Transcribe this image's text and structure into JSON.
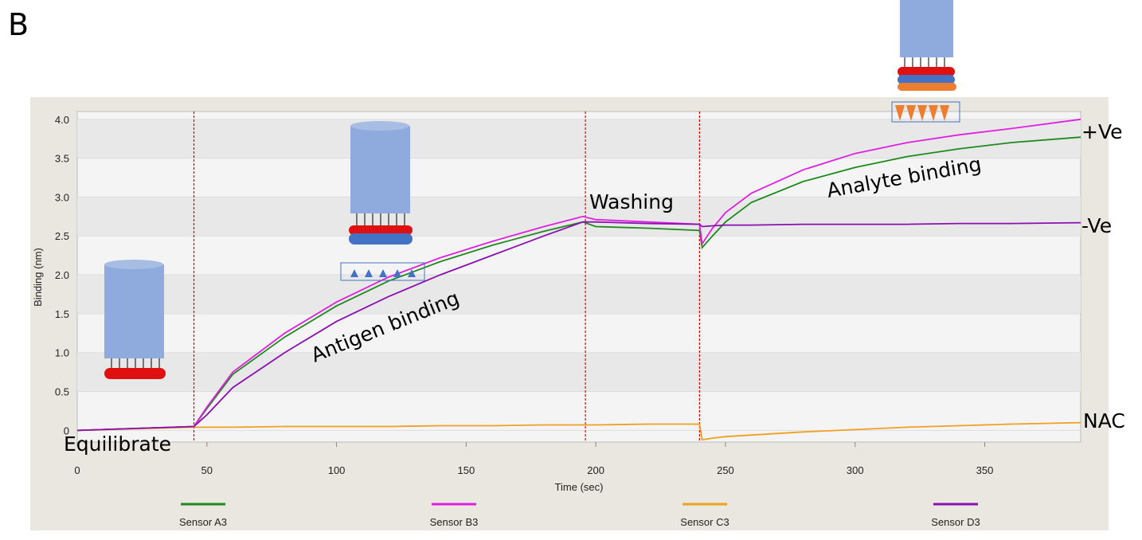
{
  "panel_label": "B",
  "chart_data": {
    "type": "line",
    "xlabel": "Time (sec)",
    "ylabel": "Binding (nm)",
    "x": [
      0,
      45,
      50,
      60,
      80,
      100,
      120,
      140,
      160,
      180,
      195,
      200,
      220,
      240,
      241,
      245,
      250,
      260,
      280,
      300,
      320,
      340,
      360,
      387
    ],
    "series": [
      {
        "name": "Sensor A3",
        "color": "#1e8a1e",
        "values": [
          0,
          0.05,
          0.28,
          0.72,
          1.2,
          1.6,
          1.92,
          2.17,
          2.38,
          2.56,
          2.68,
          2.62,
          2.6,
          2.57,
          2.35,
          2.5,
          2.68,
          2.93,
          3.2,
          3.38,
          3.52,
          3.62,
          3.7,
          3.77
        ]
      },
      {
        "name": "Sensor B3",
        "color": "#e020e0",
        "values": [
          0,
          0.05,
          0.3,
          0.75,
          1.25,
          1.65,
          1.97,
          2.22,
          2.43,
          2.62,
          2.75,
          2.71,
          2.68,
          2.65,
          2.4,
          2.6,
          2.8,
          3.05,
          3.35,
          3.56,
          3.7,
          3.8,
          3.88,
          4.0
        ]
      },
      {
        "name": "Sensor C3",
        "color": "#f0a020",
        "values": [
          0,
          0.04,
          0.04,
          0.04,
          0.05,
          0.05,
          0.05,
          0.06,
          0.06,
          0.07,
          0.07,
          0.07,
          0.08,
          0.08,
          -0.12,
          -0.1,
          -0.08,
          -0.06,
          -0.02,
          0.01,
          0.04,
          0.06,
          0.08,
          0.1
        ]
      },
      {
        "name": "Sensor D3",
        "color": "#8a10b0",
        "values": [
          0,
          0.05,
          0.2,
          0.55,
          1.0,
          1.4,
          1.72,
          2.0,
          2.25,
          2.5,
          2.68,
          2.68,
          2.66,
          2.65,
          2.62,
          2.63,
          2.64,
          2.64,
          2.65,
          2.65,
          2.65,
          2.66,
          2.66,
          2.67
        ]
      }
    ],
    "phase_lines": [
      45,
      196,
      240
    ],
    "xlim": [
      0,
      387
    ],
    "ylim": [
      -0.15,
      4.1
    ],
    "xticks": [
      0,
      50,
      100,
      150,
      200,
      250,
      300,
      350
    ],
    "yticks": [
      0,
      0.5,
      {
        "value": 1,
        "label": "1.0"
      },
      1.5,
      {
        "value": 2,
        "label": "2.0"
      },
      2.5,
      {
        "value": 3,
        "label": "3.0"
      },
      3.5,
      {
        "value": 4,
        "label": "4.0"
      }
    ],
    "annotations": [
      "Equilibrate",
      "Antigen binding",
      "Washing",
      "Analyte binding"
    ],
    "end_labels": [
      "+Ve",
      "-Ve",
      "NAC"
    ]
  }
}
